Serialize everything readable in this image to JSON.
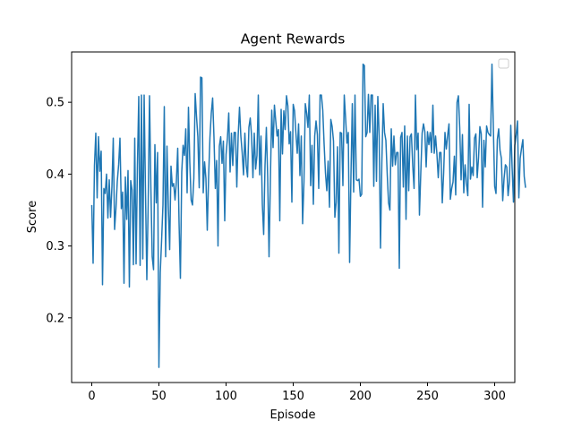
{
  "chart_data": {
    "type": "line",
    "title": "Agent Rewards",
    "xlabel": "Episode",
    "ylabel": "Score",
    "xlim": [
      -15,
      315
    ],
    "ylim": [
      0.11,
      0.57
    ],
    "xticks": [
      0,
      50,
      100,
      150,
      200,
      250,
      300
    ],
    "yticks": [
      0.2,
      0.3,
      0.4,
      0.5
    ],
    "ytick_labels": [
      "0.2",
      "0.3",
      "0.4",
      "0.5"
    ],
    "grid": false,
    "legend": {
      "placement": "top-right",
      "entries": []
    },
    "line_color": "#1f77b4",
    "series": [
      {
        "values": [
          0.357,
          0.276,
          0.412,
          0.457,
          0.367,
          0.452,
          0.404,
          0.432,
          0.246,
          0.38,
          0.373,
          0.4,
          0.339,
          0.392,
          0.34,
          0.382,
          0.45,
          0.323,
          0.352,
          0.39,
          0.413,
          0.45,
          0.352,
          0.375,
          0.248,
          0.396,
          0.337,
          0.405,
          0.243,
          0.391,
          0.378,
          0.274,
          0.45,
          0.275,
          0.412,
          0.508,
          0.273,
          0.51,
          0.282,
          0.51,
          0.375,
          0.253,
          0.357,
          0.509,
          0.383,
          0.285,
          0.267,
          0.441,
          0.36,
          0.43,
          0.131,
          0.263,
          0.308,
          0.357,
          0.494,
          0.285,
          0.439,
          0.355,
          0.295,
          0.411,
          0.383,
          0.387,
          0.364,
          0.39,
          0.436,
          0.332,
          0.255,
          0.403,
          0.44,
          0.426,
          0.463,
          0.374,
          0.493,
          0.416,
          0.364,
          0.357,
          0.394,
          0.512,
          0.48,
          0.452,
          0.381,
          0.535,
          0.534,
          0.374,
          0.417,
          0.394,
          0.322,
          0.396,
          0.451,
          0.485,
          0.506,
          0.451,
          0.38,
          0.419,
          0.3,
          0.439,
          0.452,
          0.415,
          0.446,
          0.335,
          0.427,
          0.45,
          0.485,
          0.403,
          0.457,
          0.412,
          0.458,
          0.458,
          0.382,
          0.453,
          0.493,
          0.453,
          0.43,
          0.399,
          0.457,
          0.412,
          0.396,
          0.465,
          0.478,
          0.453,
          0.395,
          0.457,
          0.407,
          0.426,
          0.51,
          0.399,
          0.453,
          0.358,
          0.316,
          0.412,
          0.465,
          0.395,
          0.285,
          0.392,
          0.489,
          0.437,
          0.496,
          0.474,
          0.453,
          0.462,
          0.335,
          0.49,
          0.428,
          0.488,
          0.462,
          0.509,
          0.495,
          0.442,
          0.459,
          0.361,
          0.497,
          0.488,
          0.457,
          0.429,
          0.47,
          0.398,
          0.453,
          0.331,
          0.389,
          0.498,
          0.485,
          0.465,
          0.51,
          0.384,
          0.44,
          0.358,
          0.453,
          0.474,
          0.455,
          0.38,
          0.51,
          0.51,
          0.489,
          0.442,
          0.402,
          0.377,
          0.418,
          0.354,
          0.476,
          0.466,
          0.446,
          0.34,
          0.361,
          0.438,
          0.29,
          0.458,
          0.457,
          0.384,
          0.51,
          0.478,
          0.443,
          0.458,
          0.277,
          0.398,
          0.498,
          0.375,
          0.51,
          0.392,
          0.391,
          0.393,
          0.369,
          0.372,
          0.553,
          0.551,
          0.452,
          0.458,
          0.511,
          0.458,
          0.51,
          0.51,
          0.383,
          0.496,
          0.39,
          0.508,
          0.453,
          0.297,
          0.416,
          0.498,
          0.458,
          0.447,
          0.4,
          0.36,
          0.35,
          0.463,
          0.411,
          0.453,
          0.413,
          0.43,
          0.43,
          0.269,
          0.451,
          0.458,
          0.382,
          0.467,
          0.337,
          0.453,
          0.377,
          0.452,
          0.456,
          0.412,
          0.38,
          0.51,
          0.434,
          0.457,
          0.343,
          0.402,
          0.457,
          0.47,
          0.459,
          0.41,
          0.459,
          0.441,
          0.458,
          0.43,
          0.496,
          0.429,
          0.453,
          0.428,
          0.395,
          0.43,
          0.43,
          0.36,
          0.401,
          0.458,
          0.435,
          0.454,
          0.47,
          0.365,
          0.38,
          0.389,
          0.425,
          0.371,
          0.5,
          0.509,
          0.464,
          0.392,
          0.455,
          0.374,
          0.413,
          0.387,
          0.37,
          0.497,
          0.393,
          0.41,
          0.398,
          0.45,
          0.456,
          0.395,
          0.423,
          0.466,
          0.456,
          0.354,
          0.447,
          0.41,
          0.467,
          0.458,
          0.455,
          0.453,
          0.553,
          0.467,
          0.383,
          0.373,
          0.448,
          0.463,
          0.433,
          0.422,
          0.363,
          0.394,
          0.413,
          0.41,
          0.37,
          0.39,
          0.468,
          0.409,
          0.361,
          0.44,
          0.455,
          0.474,
          0.367,
          0.422,
          0.436,
          0.448,
          0.397,
          0.381
        ]
      }
    ]
  }
}
